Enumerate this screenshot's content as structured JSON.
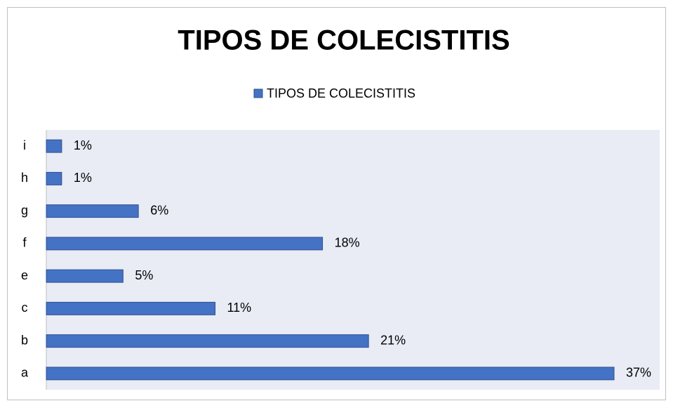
{
  "chart_data": {
    "type": "bar",
    "orientation": "horizontal",
    "title": "TIPOS DE COLECISTITIS",
    "categories": [
      "a",
      "b",
      "c",
      "e",
      "f",
      "g",
      "h",
      "i"
    ],
    "series": [
      {
        "name": "TIPOS DE COLECISTITIS",
        "color": "#4472c4",
        "values": [
          37,
          21,
          11,
          5,
          18,
          6,
          1,
          1
        ],
        "value_labels": [
          "37%",
          "21%",
          "11%",
          "5%",
          "18%",
          "6%",
          "1%",
          "1%"
        ]
      }
    ],
    "legend": "top"
  }
}
